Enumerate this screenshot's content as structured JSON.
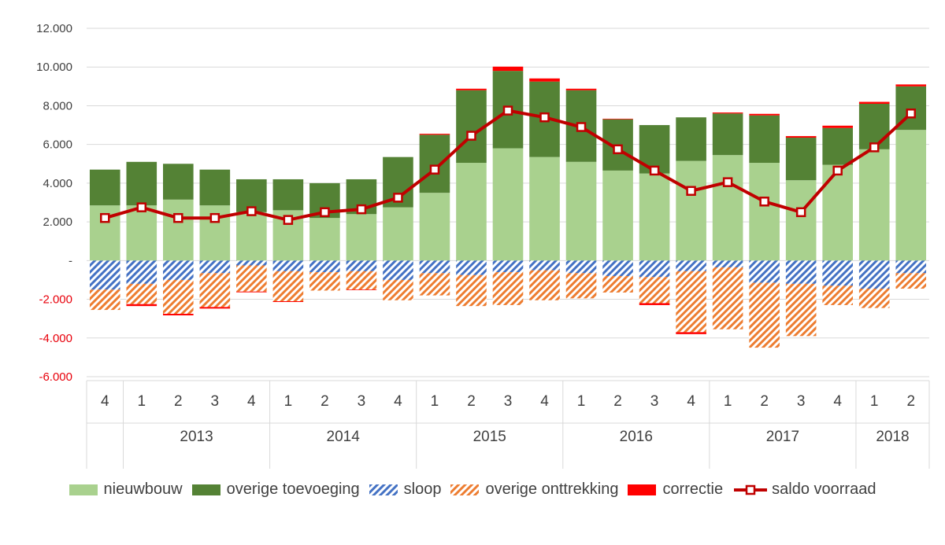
{
  "chart_data": {
    "type": "bar",
    "stacked": true,
    "quarters": [
      "4",
      "1",
      "2",
      "3",
      "4",
      "1",
      "2",
      "3",
      "4",
      "1",
      "2",
      "3",
      "4",
      "1",
      "2",
      "3",
      "4",
      "1",
      "2",
      "3",
      "4",
      "1",
      "2"
    ],
    "years": [
      {
        "label": "",
        "span": 1
      },
      {
        "label": "2013",
        "span": 4
      },
      {
        "label": "2014",
        "span": 4
      },
      {
        "label": "2015",
        "span": 4
      },
      {
        "label": "2016",
        "span": 4
      },
      {
        "label": "2017",
        "span": 4
      },
      {
        "label": "2018",
        "span": 2
      }
    ],
    "ylim": [
      -6000,
      12000
    ],
    "yticks": [
      {
        "value": 12000,
        "label": "12.000"
      },
      {
        "value": 10000,
        "label": "10.000"
      },
      {
        "value": 8000,
        "label": "8.000"
      },
      {
        "value": 6000,
        "label": "6.000"
      },
      {
        "value": 4000,
        "label": "4.000"
      },
      {
        "value": 2000,
        "label": "2.000"
      },
      {
        "value": 0,
        "label": "-"
      },
      {
        "value": -2000,
        "label": "-2.000"
      },
      {
        "value": -4000,
        "label": "-4.000"
      },
      {
        "value": -6000,
        "label": "-6.000"
      }
    ],
    "grid": true,
    "legend_position": "bottom",
    "series": [
      {
        "name": "nieuwbouw",
        "kind": "bar",
        "color": "#a9d18e",
        "pattern": "solid",
        "values": [
          2850,
          2850,
          3150,
          2850,
          2500,
          2600,
          2200,
          2400,
          2750,
          3500,
          5050,
          5800,
          5350,
          5100,
          4650,
          4500,
          5150,
          5450,
          5050,
          4150,
          4950,
          5750,
          6750
        ]
      },
      {
        "name": "overige toevoeging",
        "kind": "bar",
        "color": "#548235",
        "pattern": "solid",
        "values": [
          1850,
          2250,
          1850,
          1850,
          1700,
          1600,
          1800,
          1800,
          2600,
          3000,
          3750,
          4000,
          3900,
          3700,
          2650,
          2500,
          2250,
          2150,
          2450,
          2200,
          1900,
          2350,
          2250
        ]
      },
      {
        "name": "sloop",
        "kind": "bar",
        "color": "#4472c4",
        "pattern": "hatch-blue",
        "values": [
          -1500,
          -1200,
          -1000,
          -650,
          -250,
          -550,
          -600,
          -550,
          -1000,
          -650,
          -750,
          -600,
          -500,
          -650,
          -800,
          -850,
          -550,
          -350,
          -1150,
          -1200,
          -1300,
          -1450,
          -650
        ]
      },
      {
        "name": "overige onttrekking",
        "kind": "bar",
        "color": "#ed7d31",
        "pattern": "hatch-orange",
        "values": [
          -1050,
          -1050,
          -1750,
          -1750,
          -1350,
          -1550,
          -950,
          -950,
          -1050,
          -1150,
          -1600,
          -1700,
          -1550,
          -1300,
          -850,
          -1350,
          -3150,
          -3200,
          -3350,
          -2700,
          -1000,
          -1000,
          -800
        ]
      },
      {
        "name": "correctie",
        "kind": "bar",
        "color": "#ff0000",
        "pattern": "solid",
        "values": [
          0,
          -100,
          -80,
          -80,
          -40,
          -40,
          0,
          -30,
          0,
          50,
          80,
          220,
          160,
          80,
          30,
          -100,
          -100,
          50,
          80,
          80,
          120,
          100,
          100
        ]
      },
      {
        "name": "saldo voorraad",
        "kind": "line",
        "color": "#c00000",
        "values": [
          2200,
          2750,
          2200,
          2200,
          2550,
          2100,
          2500,
          2650,
          3250,
          4700,
          6450,
          7750,
          7400,
          6900,
          5750,
          4650,
          3600,
          4050,
          3050,
          2500,
          4650,
          5850,
          7600
        ]
      }
    ]
  },
  "legend": [
    {
      "label": "nieuwbouw",
      "kind": "solid",
      "color": "#a9d18e"
    },
    {
      "label": "overige toevoeging",
      "kind": "solid",
      "color": "#548235"
    },
    {
      "label": "sloop",
      "kind": "hatch-blue",
      "color": "#4472c4"
    },
    {
      "label": "overige onttrekking",
      "kind": "hatch-orange",
      "color": "#ed7d31"
    },
    {
      "label": "correctie",
      "kind": "solid",
      "color": "#ff0000"
    },
    {
      "label": "saldo voorraad",
      "kind": "line",
      "color": "#c00000"
    }
  ]
}
